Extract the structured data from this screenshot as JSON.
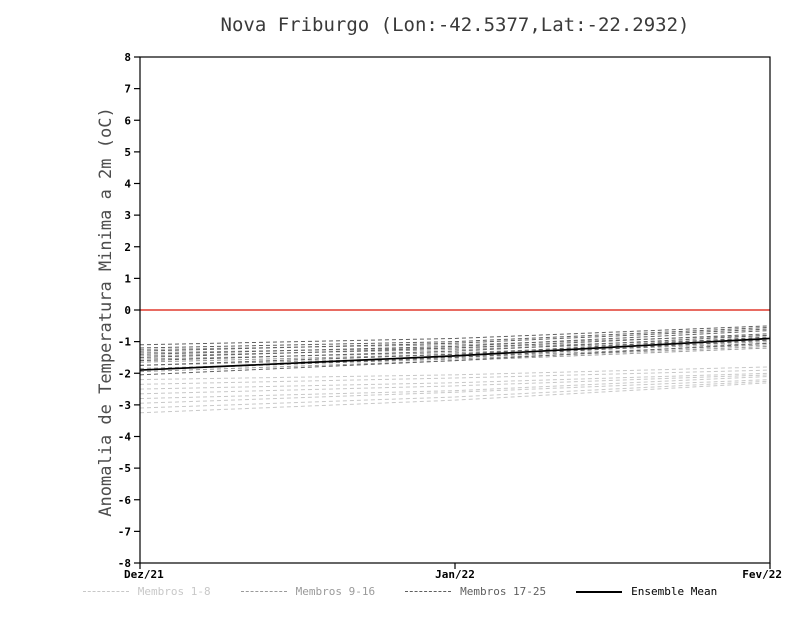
{
  "chart_data": {
    "type": "line",
    "title": "Nova Friburgo (Lon:-42.5377,Lat:-22.2932)",
    "ylabel": "Anomalia de Temperatura Minima a 2m (oC)",
    "ylim": [
      -8,
      8
    ],
    "y_ticks": [
      8,
      7,
      6,
      5,
      4,
      3,
      2,
      1,
      0,
      -1,
      -2,
      -3,
      -4,
      -5,
      -6,
      -7,
      -8
    ],
    "x": [
      0,
      1,
      2
    ],
    "x_ticks": [
      {
        "pos": 0,
        "label": "Dez/21"
      },
      {
        "pos": 1,
        "label": "Jan/22"
      },
      {
        "pos": 2,
        "label": "Fev/22"
      }
    ],
    "zero_line": {
      "y": 0,
      "color": "#e03a2f"
    },
    "frame_color": "#000000",
    "legend_position": "bottom",
    "grid": false,
    "groups": [
      {
        "name": "Membros 1-8",
        "color": "#c8c8c8",
        "dash": true,
        "series": [
          [
            -2.2,
            -2.05,
            -1.8
          ],
          [
            -2.35,
            -2.15,
            -1.9
          ],
          [
            -2.5,
            -2.3,
            -2.0
          ],
          [
            -2.65,
            -2.4,
            -2.05
          ],
          [
            -2.8,
            -2.55,
            -2.1
          ],
          [
            -2.95,
            -2.6,
            -2.2
          ],
          [
            -3.1,
            -2.75,
            -2.25
          ],
          [
            -3.25,
            -2.85,
            -2.3
          ]
        ]
      },
      {
        "name": "Membros 9-16",
        "color": "#9a9a9a",
        "dash": true,
        "series": [
          [
            -1.25,
            -1.1,
            -0.8
          ],
          [
            -1.35,
            -1.2,
            -0.9
          ],
          [
            -1.45,
            -1.25,
            -0.95
          ],
          [
            -1.55,
            -1.35,
            -1.0
          ],
          [
            -1.65,
            -1.4,
            -1.05
          ],
          [
            -1.75,
            -1.5,
            -1.1
          ],
          [
            -1.85,
            -1.55,
            -1.15
          ],
          [
            -1.95,
            -1.6,
            -1.2
          ]
        ]
      },
      {
        "name": "Membros 17-25",
        "color": "#5f5f5f",
        "dash": true,
        "series": [
          [
            -1.1,
            -0.9,
            -0.5
          ],
          [
            -1.2,
            -1.0,
            -0.55
          ],
          [
            -1.3,
            -1.05,
            -0.6
          ],
          [
            -1.4,
            -1.15,
            -0.65
          ],
          [
            -1.5,
            -1.2,
            -0.75
          ],
          [
            -1.6,
            -1.3,
            -0.8
          ],
          [
            -1.75,
            -1.4,
            -0.85
          ],
          [
            -1.9,
            -1.5,
            -0.95
          ],
          [
            -2.05,
            -1.6,
            -1.05
          ]
        ]
      },
      {
        "name": "Ensemble Mean",
        "color": "#000000",
        "dash": false,
        "series": [
          [
            -1.9,
            -1.45,
            -0.9
          ]
        ]
      }
    ]
  }
}
